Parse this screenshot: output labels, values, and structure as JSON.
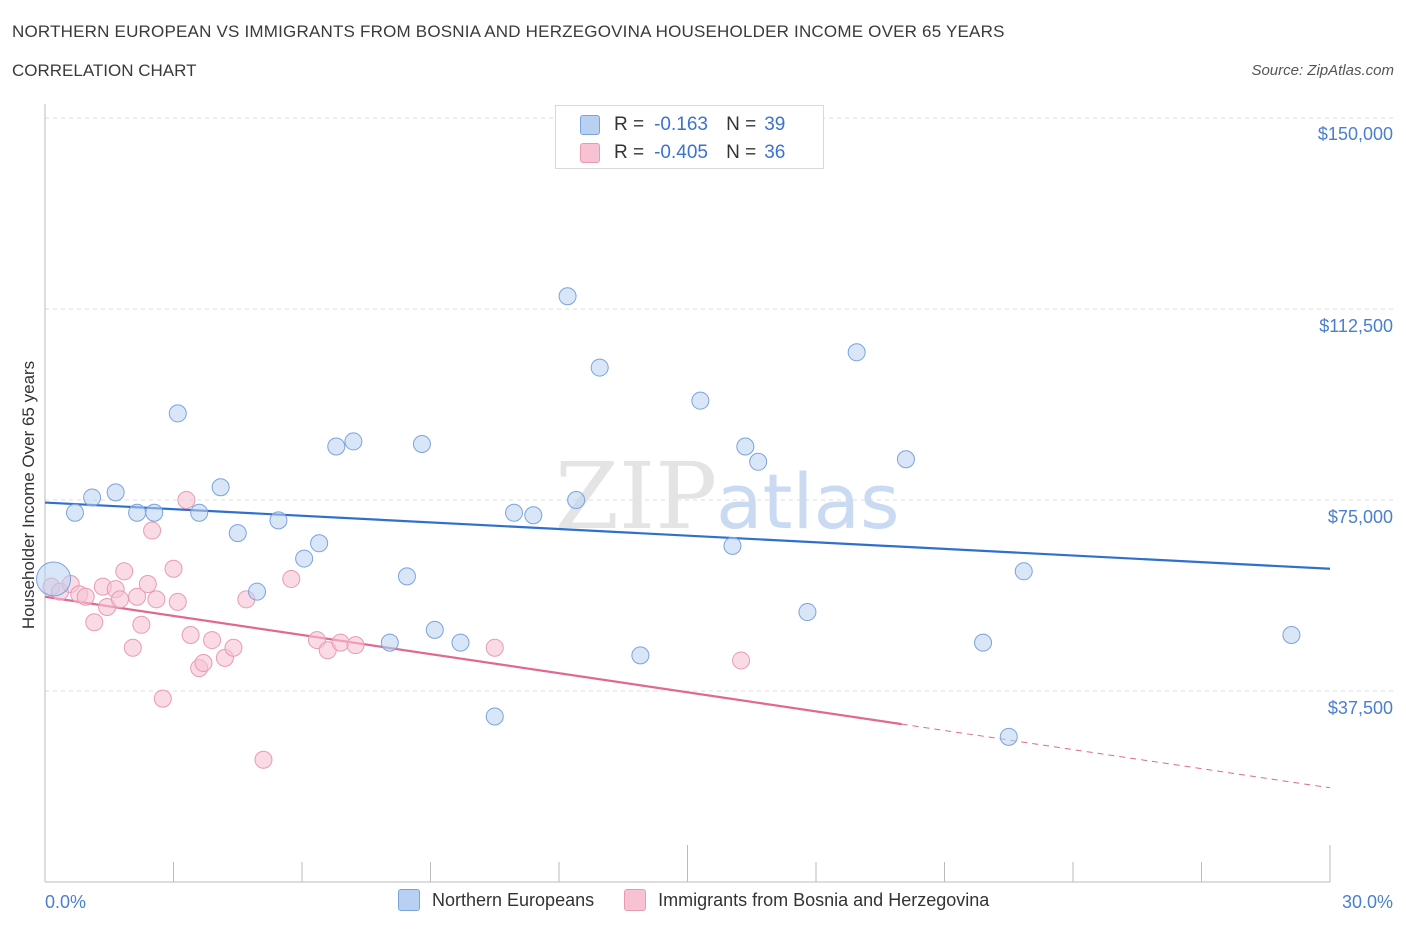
{
  "title": "NORTHERN EUROPEAN VS IMMIGRANTS FROM BOSNIA AND HERZEGOVINA HOUSEHOLDER INCOME OVER 65 YEARS",
  "subtitle": "CORRELATION CHART",
  "source": "Source: ZipAtlas.com",
  "watermark": {
    "zip": "ZIP",
    "atlas": "atlas"
  },
  "legend": {
    "rows": [
      {
        "r_label": "R =",
        "r_value": "-0.163",
        "n_label": "N =",
        "n_value": "39"
      },
      {
        "r_label": "R =",
        "r_value": "-0.405",
        "n_label": "N =",
        "n_value": "36"
      }
    ]
  },
  "colors": {
    "blue_fill": "#b8d1f3",
    "blue_stroke": "#7aa3de",
    "blue_line": "#2f6fce",
    "pink_fill": "#f7c3d3",
    "pink_stroke": "#e89ab4",
    "pink_line": "#e06892",
    "grid": "#dddddd",
    "axis_text": "#4a7fd0"
  },
  "chart_data": {
    "type": "scatter",
    "title": "NORTHERN EUROPEAN VS IMMIGRANTS FROM BOSNIA AND HERZEGOVINA HOUSEHOLDER INCOME OVER 65 YEARS",
    "xlabel": "",
    "ylabel": "Householder Income Over 65 years",
    "xlim": [
      0,
      30
    ],
    "ylim": [
      0,
      150000
    ],
    "x_tick_labels": [
      "0.0%",
      "30.0%"
    ],
    "y_ticks": [
      37500,
      75000,
      112500,
      150000
    ],
    "y_tick_labels": [
      "$37,500",
      "$75,000",
      "$112,500",
      "$150,000"
    ],
    "grid": true,
    "legend_position": "bottom",
    "series": [
      {
        "name": "Northern Europeans",
        "color": "#b8d1f3",
        "R": -0.163,
        "N": 39,
        "points": [
          [
            0.2,
            59500
          ],
          [
            0.7,
            72500
          ],
          [
            1.1,
            75500
          ],
          [
            1.65,
            76500
          ],
          [
            2.15,
            72500
          ],
          [
            2.55,
            72500
          ],
          [
            3.1,
            92000
          ],
          [
            3.6,
            72500
          ],
          [
            4.1,
            77500
          ],
          [
            4.5,
            68500
          ],
          [
            4.95,
            57000
          ],
          [
            5.45,
            71000
          ],
          [
            6.05,
            63500
          ],
          [
            6.4,
            66500
          ],
          [
            6.8,
            85500
          ],
          [
            7.2,
            86500
          ],
          [
            8.05,
            47000
          ],
          [
            8.45,
            60000
          ],
          [
            8.8,
            86000
          ],
          [
            9.1,
            49500
          ],
          [
            9.7,
            47000
          ],
          [
            10.5,
            32500
          ],
          [
            10.95,
            72500
          ],
          [
            11.4,
            72000
          ],
          [
            12.2,
            115000
          ],
          [
            12.4,
            75000
          ],
          [
            12.95,
            101000
          ],
          [
            13.9,
            44500
          ],
          [
            15.3,
            94500
          ],
          [
            16.05,
            66000
          ],
          [
            16.35,
            85500
          ],
          [
            16.65,
            82500
          ],
          [
            17.8,
            53000
          ],
          [
            18.95,
            104000
          ],
          [
            20.1,
            83000
          ],
          [
            21.9,
            47000
          ],
          [
            22.5,
            28500
          ],
          [
            22.85,
            61000
          ],
          [
            29.1,
            48500
          ]
        ],
        "trend": {
          "x0": 0,
          "y0": 74500,
          "x1": 30,
          "y1": 61500
        }
      },
      {
        "name": "Immigrants from Bosnia and Herzegovina",
        "color": "#f7c3d3",
        "R": -0.405,
        "N": 36,
        "points": [
          [
            0.15,
            58000
          ],
          [
            0.35,
            57000
          ],
          [
            0.6,
            58500
          ],
          [
            0.8,
            56500
          ],
          [
            0.95,
            56000
          ],
          [
            1.15,
            51000
          ],
          [
            1.35,
            58000
          ],
          [
            1.45,
            54000
          ],
          [
            1.65,
            57500
          ],
          [
            1.75,
            55500
          ],
          [
            1.85,
            61000
          ],
          [
            2.05,
            46000
          ],
          [
            2.15,
            56000
          ],
          [
            2.25,
            50500
          ],
          [
            2.4,
            58500
          ],
          [
            2.5,
            69000
          ],
          [
            2.6,
            55500
          ],
          [
            2.75,
            36000
          ],
          [
            3.0,
            61500
          ],
          [
            3.1,
            55000
          ],
          [
            3.3,
            75000
          ],
          [
            3.4,
            48500
          ],
          [
            3.6,
            42000
          ],
          [
            3.7,
            43000
          ],
          [
            3.9,
            47500
          ],
          [
            4.2,
            44000
          ],
          [
            4.4,
            46000
          ],
          [
            4.7,
            55500
          ],
          [
            5.1,
            24000
          ],
          [
            5.75,
            59500
          ],
          [
            6.35,
            47500
          ],
          [
            6.6,
            45500
          ],
          [
            6.9,
            47000
          ],
          [
            7.25,
            46500
          ],
          [
            10.5,
            46000
          ],
          [
            16.25,
            43500
          ]
        ],
        "trend": {
          "x0": 0,
          "y0": 56000,
          "x1": 20,
          "y1": 31000,
          "dash_to_x": 30,
          "dash_to_y": 18500
        }
      }
    ]
  },
  "bottom_legend": [
    {
      "label": "Northern Europeans"
    },
    {
      "label": "Immigrants from Bosnia and Herzegovina"
    }
  ]
}
